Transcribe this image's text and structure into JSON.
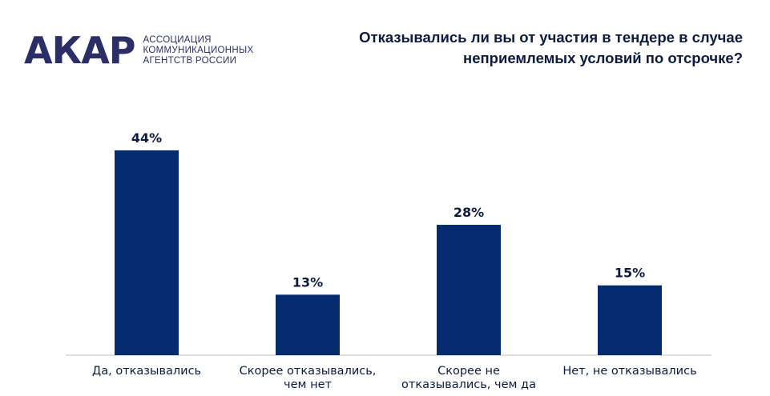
{
  "logo": {
    "mark": "АКАР",
    "lines": [
      "АССОЦИАЦИЯ",
      "КОММУНИКАЦИОННЫХ",
      "АГЕНТСТВ РОССИИ"
    ]
  },
  "chart_data": {
    "type": "bar",
    "title": "Отказывались ли вы от участия в тендере в случае неприемлемых условий по отсрочке?",
    "categories": [
      [
        "Да, отказывались"
      ],
      [
        "Скорее отказывались,",
        "чем нет"
      ],
      [
        "Скорее не",
        "отказывались, чем да"
      ],
      [
        "Нет, не отказывались"
      ]
    ],
    "values": [
      44,
      13,
      28,
      15
    ],
    "value_labels": [
      "44%",
      "13%",
      "28%",
      "15%"
    ],
    "ylim": [
      0,
      50
    ],
    "grid": false,
    "bar_color": "#032b6e",
    "axis_color": "#bfbfbf"
  }
}
